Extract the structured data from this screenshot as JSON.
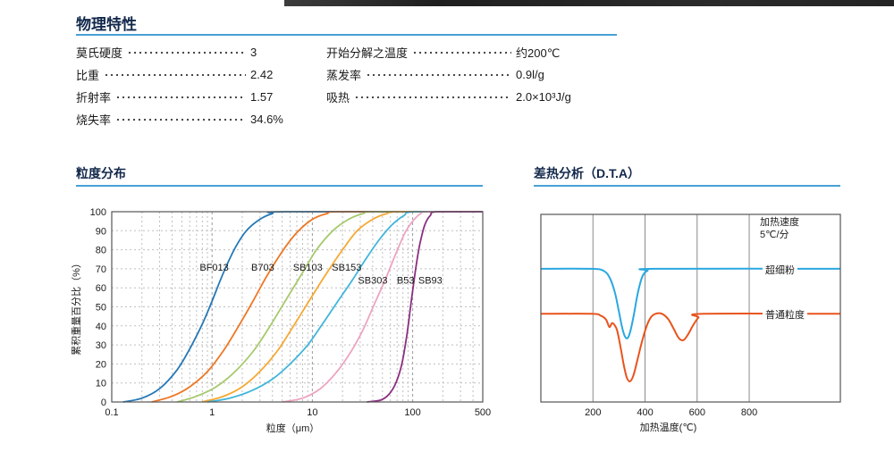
{
  "sections": {
    "physical": {
      "title": "物理特性"
    },
    "psd": {
      "title": "粒度分布"
    },
    "dta": {
      "title": "差热分析（D.T.A）"
    }
  },
  "properties": {
    "left": [
      {
        "label": "莫氏硬度",
        "value": "3"
      },
      {
        "label": "比重",
        "value": "2.42"
      },
      {
        "label": "折射率",
        "value": "1.57"
      },
      {
        "label": "烧失率",
        "value": "34.6%"
      }
    ],
    "right": [
      {
        "label": "开始分解之温度",
        "value": "约200℃"
      },
      {
        "label": "蒸发率",
        "value": "0.9l/g"
      },
      {
        "label": "吸热",
        "value": "2.0×10³J/g"
      }
    ]
  },
  "chart_data": [
    {
      "type": "line",
      "title": "粒度分布",
      "xlabel": "粒度（μm）",
      "ylabel": "累积重量百分比（%）",
      "x_scale": "log",
      "xlim": [
        0.1,
        500
      ],
      "ylim": [
        0,
        100
      ],
      "xticks": [
        "0.1",
        "1",
        "10",
        "100",
        "500"
      ],
      "xtick_values": [
        0.1,
        1,
        10,
        100,
        500
      ],
      "yticks": [
        0,
        10,
        20,
        30,
        40,
        50,
        60,
        70,
        80,
        90,
        100
      ],
      "grid": "dashed",
      "series": [
        {
          "name": "BF013",
          "color": "#2478b8",
          "points": [
            [
              0.13,
              0
            ],
            [
              0.2,
              2
            ],
            [
              0.3,
              7
            ],
            [
              0.45,
              17
            ],
            [
              0.6,
              28
            ],
            [
              0.8,
              41
            ],
            [
              1.0,
              53
            ],
            [
              1.3,
              68
            ],
            [
              1.7,
              81
            ],
            [
              2.2,
              90
            ],
            [
              3,
              96
            ],
            [
              4,
              99
            ],
            [
              5.5,
              100
            ],
            [
              500,
              100
            ]
          ]
        },
        {
          "name": "B703",
          "color": "#ee7623",
          "points": [
            [
              0.25,
              0
            ],
            [
              0.4,
              3
            ],
            [
              0.6,
              8
            ],
            [
              0.9,
              16
            ],
            [
              1.3,
              27
            ],
            [
              1.8,
              39
            ],
            [
              2.5,
              52
            ],
            [
              3.5,
              66
            ],
            [
              5,
              79
            ],
            [
              7,
              89
            ],
            [
              10,
              96
            ],
            [
              14,
              99
            ],
            [
              20,
              100
            ],
            [
              500,
              100
            ]
          ]
        },
        {
          "name": "SB103",
          "color": "#a6c96d",
          "points": [
            [
              0.45,
              0
            ],
            [
              0.7,
              3
            ],
            [
              1.1,
              8
            ],
            [
              1.7,
              16
            ],
            [
              2.6,
              27
            ],
            [
              3.8,
              40
            ],
            [
              5.5,
              54
            ],
            [
              8,
              68
            ],
            [
              11,
              80
            ],
            [
              16,
              90
            ],
            [
              23,
              96
            ],
            [
              32,
              99
            ],
            [
              45,
              100
            ],
            [
              500,
              100
            ]
          ]
        },
        {
          "name": "SB153",
          "color": "#f6a832",
          "points": [
            [
              0.8,
              0
            ],
            [
              1.3,
              3
            ],
            [
              2,
              8
            ],
            [
              3,
              16
            ],
            [
              4.5,
              27
            ],
            [
              6.5,
              40
            ],
            [
              9.5,
              54
            ],
            [
              14,
              68
            ],
            [
              20,
              80
            ],
            [
              28,
              90
            ],
            [
              40,
              96
            ],
            [
              55,
              99
            ],
            [
              75,
              100
            ],
            [
              500,
              100
            ]
          ]
        },
        {
          "name": "SB303",
          "color": "#41b5da",
          "points": [
            [
              0.9,
              0
            ],
            [
              1.5,
              2
            ],
            [
              2.5,
              6
            ],
            [
              4,
              12
            ],
            [
              6,
              20
            ],
            [
              9,
              30
            ],
            [
              13,
              42
            ],
            [
              18,
              53
            ],
            [
              25,
              64
            ],
            [
              34,
              75
            ],
            [
              46,
              85
            ],
            [
              62,
              93
            ],
            [
              82,
              98
            ],
            [
              105,
              100
            ],
            [
              500,
              100
            ]
          ]
        },
        {
          "name": "B53",
          "color": "#eda4c2",
          "points": [
            [
              5,
              0
            ],
            [
              8,
              2
            ],
            [
              12,
              7
            ],
            [
              17,
              15
            ],
            [
              24,
              26
            ],
            [
              32,
              38
            ],
            [
              42,
              52
            ],
            [
              54,
              65
            ],
            [
              68,
              78
            ],
            [
              84,
              89
            ],
            [
              100,
              95
            ],
            [
              120,
              99
            ],
            [
              145,
              100
            ],
            [
              500,
              100
            ]
          ]
        },
        {
          "name": "SB93",
          "color": "#8c2e80",
          "points": [
            [
              35,
              0
            ],
            [
              48,
              1
            ],
            [
              58,
              4
            ],
            [
              68,
              10
            ],
            [
              78,
              20
            ],
            [
              88,
              36
            ],
            [
              98,
              55
            ],
            [
              108,
              71
            ],
            [
              118,
              83
            ],
            [
              132,
              93
            ],
            [
              150,
              98
            ],
            [
              175,
              100
            ],
            [
              500,
              100
            ]
          ]
        }
      ],
      "labels": [
        {
          "text": "BF013",
          "x": 1.05,
          "y": 71
        },
        {
          "text": "B703",
          "x": 3.2,
          "y": 71
        },
        {
          "text": "SB103",
          "x": 9.0,
          "y": 71
        },
        {
          "text": "SB153",
          "x": 22,
          "y": 71
        },
        {
          "text": "SB303",
          "x": 40,
          "y": 64
        },
        {
          "text": "B53",
          "x": 85,
          "y": 64
        },
        {
          "text": "SB93",
          "x": 150,
          "y": 64
        }
      ]
    },
    {
      "type": "line",
      "title": "差热分析（D.T.A）",
      "xlabel": "加热温度(℃)",
      "xlim": [
        0,
        1150
      ],
      "ylim": [
        0,
        100
      ],
      "xticks": [
        200,
        400,
        600,
        800
      ],
      "annotations": [
        "加热速度",
        "5℃/分"
      ],
      "series": [
        {
          "name": "超细粉",
          "color": "#29a8e0",
          "points": [
            [
              0,
              71
            ],
            [
              190,
              71
            ],
            [
              240,
              70
            ],
            [
              265,
              66
            ],
            [
              285,
              58
            ],
            [
              300,
              48
            ],
            [
              315,
              38
            ],
            [
              328,
              34
            ],
            [
              340,
              36
            ],
            [
              355,
              45
            ],
            [
              372,
              58
            ],
            [
              390,
              67
            ],
            [
              410,
              70
            ],
            [
              440,
              71
            ],
            [
              1150,
              71
            ]
          ]
        },
        {
          "name": "普通粒度",
          "color": "#e8541d",
          "points": [
            [
              0,
              47
            ],
            [
              195,
              47
            ],
            [
              230,
              46
            ],
            [
              250,
              44
            ],
            [
              263,
              40
            ],
            [
              273,
              42
            ],
            [
              283,
              41
            ],
            [
              293,
              38
            ],
            [
              305,
              30
            ],
            [
              318,
              20
            ],
            [
              330,
              13
            ],
            [
              342,
              11
            ],
            [
              355,
              14
            ],
            [
              370,
              22
            ],
            [
              388,
              32
            ],
            [
              405,
              40
            ],
            [
              422,
              45
            ],
            [
              440,
              47
            ],
            [
              465,
              47
            ],
            [
              490,
              44
            ],
            [
              510,
              39
            ],
            [
              530,
              34
            ],
            [
              548,
              33
            ],
            [
              565,
              36
            ],
            [
              585,
              41
            ],
            [
              605,
              45
            ],
            [
              625,
              47
            ],
            [
              1150,
              47
            ]
          ]
        }
      ]
    }
  ]
}
